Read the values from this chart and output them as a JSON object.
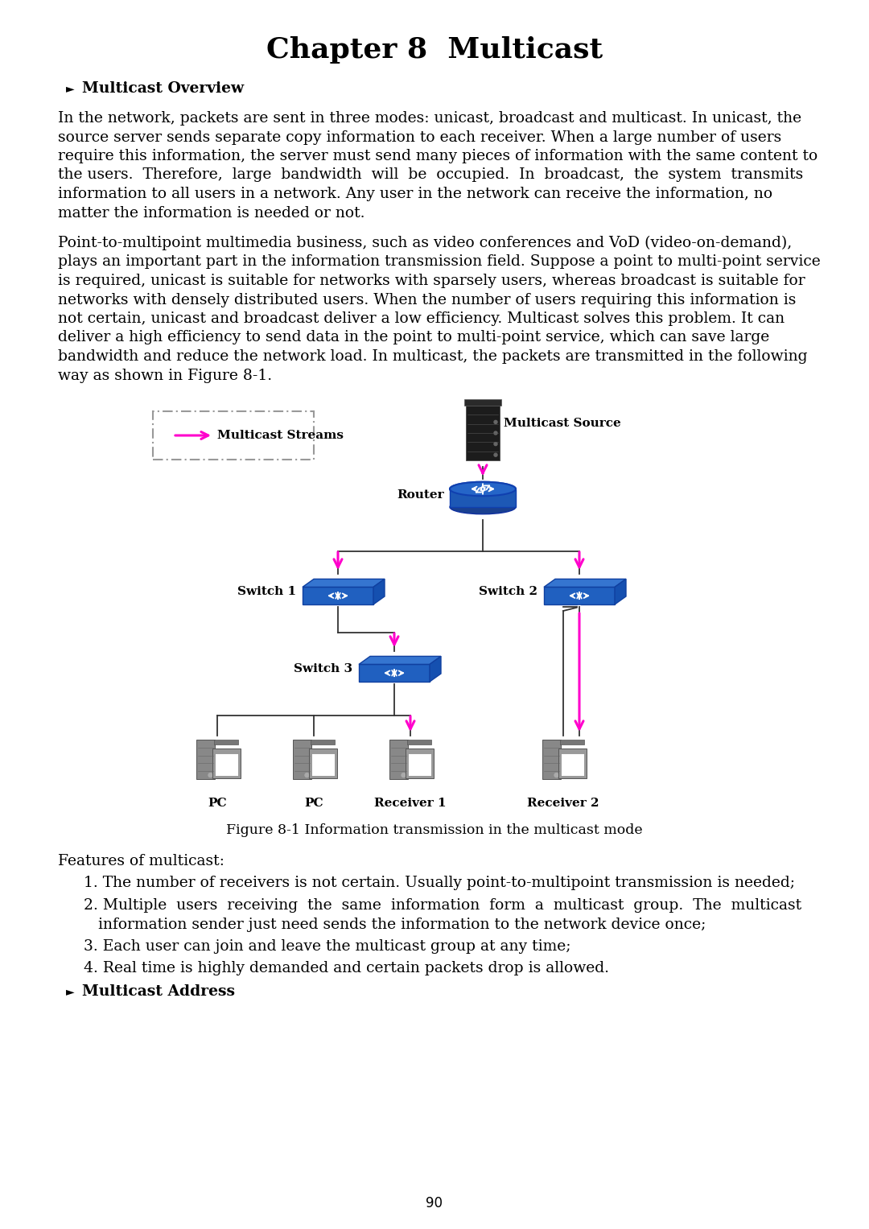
{
  "title": "Chapter 8  Multicast",
  "bg_color": "#ffffff",
  "text_color": "#000000",
  "heading1": "Multicast Overview",
  "heading2": "Multicast Address",
  "para1_lines": [
    "In the network, packets are sent in three modes: unicast, broadcast and multicast. In unicast, the",
    "source server sends separate copy information to each receiver. When a large number of users",
    "require this information, the server must send many pieces of information with the same content to",
    "the users.  Therefore,  large  bandwidth  will  be  occupied.  In  broadcast,  the  system  transmits",
    "information to all users in a network. Any user in the network can receive the information, no",
    "matter the information is needed or not."
  ],
  "para2_lines": [
    "Point-to-multipoint multimedia business, such as video conferences and VoD (video-on-demand),",
    "plays an important part in the information transmission field. Suppose a point to multi-point service",
    "is required, unicast is suitable for networks with sparsely users, whereas broadcast is suitable for",
    "networks with densely distributed users. When the number of users requiring this information is",
    "not certain, unicast and broadcast deliver a low efficiency. Multicast solves this problem. It can",
    "deliver a high efficiency to send data in the point to multi-point service, which can save large",
    "bandwidth and reduce the network load. In multicast, the packets are transmitted in the following",
    "way as shown in Figure 8-1."
  ],
  "figure_caption": "Figure 8-1 Information transmission in the multicast mode",
  "features_intro": "Features of multicast:",
  "feature1": "1. The number of receivers is not certain. Usually point-to-multipoint transmission is needed;",
  "feature2a": "2. Multiple  users  receiving  the  same  information  form  a  multicast  group.  The  multicast",
  "feature2b": "    information sender just need sends the information to the network device once;",
  "feature3": "3. Each user can join and leave the multicast group at any time;",
  "feature4": "4. Real time is highly demanded and certain packets drop is allowed.",
  "page_number": "90",
  "body_fontsize": 13.5,
  "title_fontsize": 26,
  "heading_fontsize": 13.5,
  "caption_fontsize": 12.5,
  "legend_label": "Multicast Streams",
  "legend_source_label": "Multicast Source",
  "router_label": "Router",
  "switch1_label": "Switch 1",
  "switch2_label": "Switch 2",
  "switch3_label": "Switch 3",
  "pc1_label": "PC",
  "pc2_label": "PC",
  "receiver1_label": "Receiver 1",
  "receiver2_label": "Receiver 2",
  "magenta": "#ff00cc",
  "line_color": "#333333",
  "diag_lw": 1.3
}
